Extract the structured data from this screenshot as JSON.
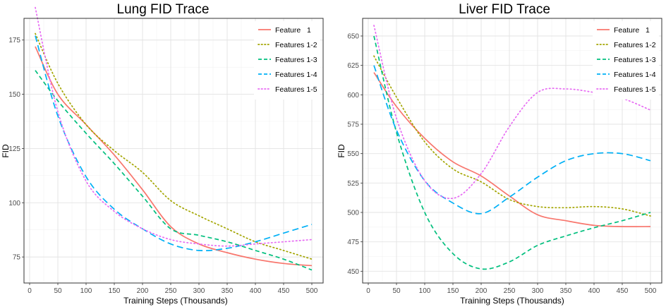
{
  "chart_data": [
    {
      "type": "line",
      "title": "Lung FID Trace",
      "xlabel": "Training Steps (Thousands)",
      "ylabel": "FID",
      "xlim": [
        -10,
        520
      ],
      "ylim": [
        63,
        185
      ],
      "xticks": [
        0,
        50,
        100,
        150,
        200,
        250,
        300,
        350,
        400,
        450,
        500
      ],
      "yticks": [
        75,
        100,
        125,
        150,
        175
      ],
      "grid": true,
      "legend_position": "top-right",
      "series": [
        {
          "name": "Feature   1",
          "color": "#F8766D",
          "dash": "solid",
          "x": [
            10,
            50,
            100,
            150,
            200,
            250,
            300,
            350,
            400,
            450,
            500
          ],
          "y": [
            172,
            150,
            136,
            122,
            106,
            89,
            81,
            77,
            74,
            72,
            71
          ]
        },
        {
          "name": "Features 1-2",
          "color": "#A3A500",
          "dash": "dotted",
          "x": [
            10,
            50,
            100,
            150,
            200,
            250,
            300,
            350,
            400,
            450,
            500
          ],
          "y": [
            178,
            155,
            136,
            124,
            114,
            101,
            94,
            88,
            82,
            78,
            74
          ]
        },
        {
          "name": "Features 1-3",
          "color": "#00BF7D",
          "dash": "dashed",
          "x": [
            10,
            50,
            100,
            150,
            200,
            250,
            300,
            350,
            400,
            450,
            500
          ],
          "y": [
            161,
            147,
            132,
            118,
            103,
            88,
            85,
            82,
            78,
            74,
            69
          ]
        },
        {
          "name": "Features 1-4",
          "color": "#00B0F6",
          "dash": "longdash",
          "x": [
            10,
            50,
            100,
            150,
            200,
            250,
            300,
            350,
            400,
            450,
            500
          ],
          "y": [
            177,
            140,
            112,
            97,
            88,
            81,
            78,
            79,
            82,
            86,
            90
          ]
        },
        {
          "name": "Features 1-5",
          "color": "#E76BF3",
          "dash": "dotted",
          "x": [
            10,
            50,
            100,
            150,
            200,
            250,
            300,
            350,
            400,
            450,
            500
          ],
          "y": [
            190,
            142,
            110,
            96,
            88,
            83,
            81,
            80,
            81,
            82,
            83
          ]
        }
      ]
    },
    {
      "type": "line",
      "title": "Liver FID Trace",
      "xlabel": "Training Steps (Thousands)",
      "ylabel": "FID",
      "xlim": [
        -10,
        520
      ],
      "ylim": [
        440,
        665
      ],
      "xticks": [
        0,
        50,
        100,
        150,
        200,
        250,
        300,
        350,
        400,
        450,
        500
      ],
      "yticks": [
        450,
        475,
        500,
        525,
        550,
        575,
        600,
        625,
        650
      ],
      "grid": true,
      "legend_position": "top-right",
      "series": [
        {
          "name": "Feature   1",
          "color": "#F8766D",
          "dash": "solid",
          "x": [
            10,
            50,
            100,
            150,
            200,
            250,
            300,
            350,
            400,
            450,
            500
          ],
          "y": [
            619,
            590,
            563,
            543,
            531,
            514,
            498,
            493,
            489,
            488,
            488
          ]
        },
        {
          "name": "Features 1-2",
          "color": "#A3A500",
          "dash": "dotted",
          "x": [
            10,
            50,
            100,
            150,
            200,
            250,
            300,
            350,
            400,
            450,
            500
          ],
          "y": [
            633,
            598,
            560,
            537,
            526,
            511,
            505,
            504,
            505,
            503,
            497
          ]
        },
        {
          "name": "Features 1-3",
          "color": "#00BF7D",
          "dash": "dashed",
          "x": [
            10,
            50,
            100,
            150,
            200,
            250,
            300,
            350,
            400,
            450,
            500
          ],
          "y": [
            650,
            568,
            500,
            465,
            452,
            458,
            472,
            480,
            487,
            493,
            500
          ]
        },
        {
          "name": "Features 1-4",
          "color": "#00B0F6",
          "dash": "longdash",
          "x": [
            10,
            50,
            100,
            150,
            200,
            250,
            300,
            350,
            400,
            450,
            500
          ],
          "y": [
            625,
            570,
            527,
            508,
            499,
            513,
            530,
            544,
            550,
            550,
            544
          ]
        },
        {
          "name": "Features 1-5",
          "color": "#E76BF3",
          "dash": "dotted",
          "x": [
            10,
            50,
            100,
            150,
            200,
            250,
            300,
            350,
            400,
            450,
            500
          ],
          "y": [
            659,
            580,
            527,
            512,
            533,
            573,
            602,
            605,
            602,
            597,
            587
          ]
        }
      ]
    }
  ]
}
